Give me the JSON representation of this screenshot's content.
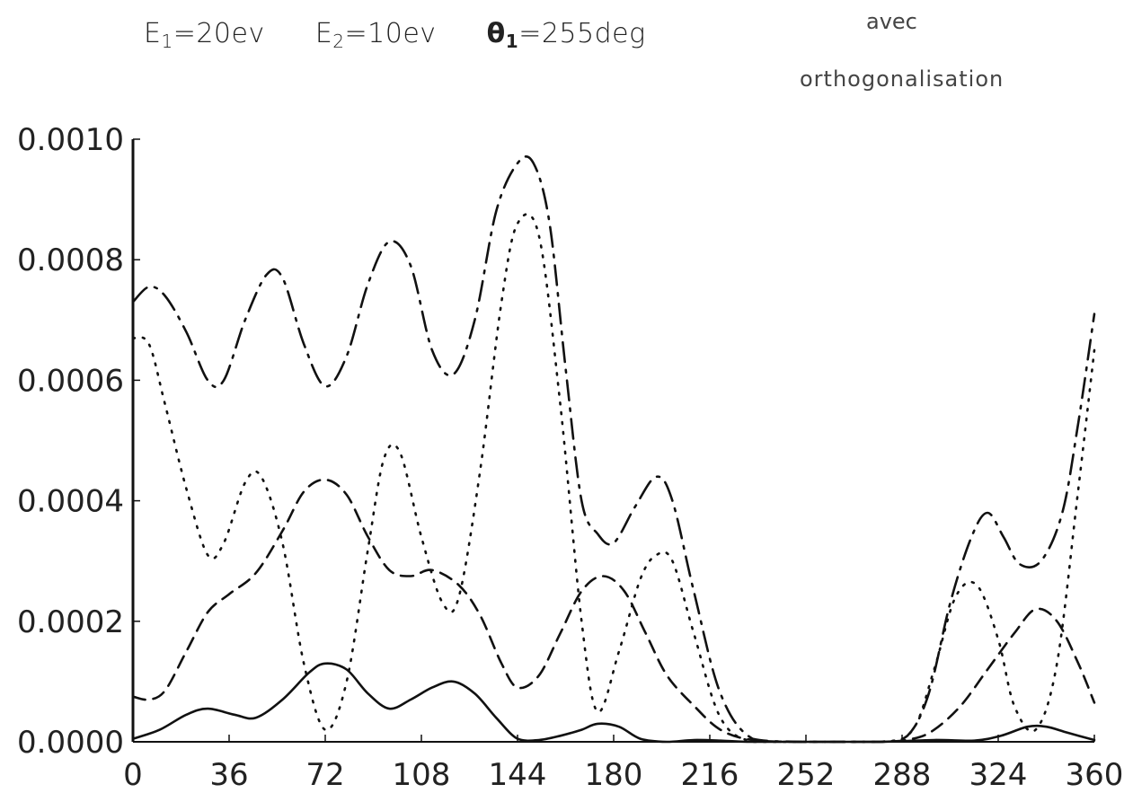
{
  "annotations": {
    "e1_label": "E",
    "e1_sub": "1",
    "e1_value": "=20ev",
    "e2_label": "E",
    "e2_sub": "2",
    "e2_value": "=10ev",
    "theta_label": "θ",
    "theta_sub": "1",
    "theta_value": "=255deg",
    "note_line1": "avec",
    "note_line2": "orthogonalisation"
  },
  "chart_data": {
    "type": "line",
    "title": "",
    "xlabel": "",
    "ylabel": "",
    "xlim": [
      0,
      360
    ],
    "ylim": [
      0,
      0.001
    ],
    "grid": false,
    "legend": "none",
    "x_ticks": [
      "0",
      "36",
      "72",
      "108",
      "144",
      "180",
      "216",
      "252",
      "288",
      "324",
      "360"
    ],
    "y_ticks": [
      "0.0000",
      "0.0002",
      "0.0004",
      "0.0006",
      "0.0008",
      "0.0010"
    ],
    "series": [
      {
        "style": "solid",
        "x": [
          0,
          10,
          20,
          28,
          38,
          46,
          56,
          66,
          72,
          80,
          88,
          96,
          104,
          112,
          120,
          128,
          136,
          144,
          152,
          160,
          168,
          174,
          182,
          190,
          200,
          210,
          220,
          230,
          250,
          280,
          300,
          315,
          325,
          335,
          342,
          350,
          360
        ],
        "y": [
          5e-06,
          2e-05,
          4.5e-05,
          5.5e-05,
          4.5e-05,
          4e-05,
          7e-05,
          0.000115,
          0.00013,
          0.00012,
          8e-05,
          5.5e-05,
          7e-05,
          9e-05,
          0.0001,
          8e-05,
          4e-05,
          5e-06,
          3e-06,
          1e-05,
          2e-05,
          3e-05,
          2.5e-05,
          5e-06,
          0.0,
          3e-06,
          2e-06,
          0.0,
          0.0,
          0.0,
          3e-06,
          2e-06,
          1e-05,
          2.5e-05,
          2.5e-05,
          1.5e-05,
          3e-06
        ]
      },
      {
        "style": "dashed",
        "x": [
          0,
          6,
          12,
          20,
          28,
          36,
          46,
          56,
          64,
          72,
          80,
          88,
          96,
          104,
          112,
          122,
          130,
          138,
          144,
          152,
          160,
          168,
          176,
          184,
          192,
          200,
          210,
          220,
          232,
          250,
          280,
          292,
          300,
          310,
          320,
          330,
          338,
          346,
          354,
          360
        ],
        "y": [
          7.5e-05,
          7e-05,
          8.5e-05,
          0.00015,
          0.000215,
          0.000245,
          0.00028,
          0.00035,
          0.000415,
          0.000435,
          0.00041,
          0.00034,
          0.000285,
          0.000275,
          0.000285,
          0.00026,
          0.00021,
          0.00013,
          9e-05,
          0.00011,
          0.00018,
          0.00025,
          0.000275,
          0.00025,
          0.00018,
          0.00011,
          6e-05,
          2e-05,
          3e-06,
          0.0,
          0.0,
          5e-06,
          2e-05,
          6e-05,
          0.00012,
          0.00018,
          0.00022,
          0.0002,
          0.00013,
          6.5e-05
        ]
      },
      {
        "style": "dotted",
        "x": [
          0,
          6,
          12,
          20,
          28,
          34,
          42,
          48,
          56,
          64,
          72,
          80,
          88,
          94,
          100,
          108,
          116,
          122,
          130,
          138,
          144,
          152,
          160,
          168,
          174,
          182,
          190,
          196,
          202,
          210,
          220,
          232,
          250,
          280,
          292,
          300,
          308,
          316,
          324,
          330,
          338,
          346,
          354,
          360
        ],
        "y": [
          0.00067,
          0.00066,
          0.00056,
          0.00042,
          0.00031,
          0.00033,
          0.00043,
          0.00044,
          0.00033,
          0.00013,
          2e-05,
          0.0001,
          0.00032,
          0.00047,
          0.00048,
          0.00034,
          0.00023,
          0.00024,
          0.00045,
          0.00073,
          0.00086,
          0.00084,
          0.00056,
          0.0002,
          5e-05,
          0.00015,
          0.00027,
          0.00031,
          0.0003,
          0.00018,
          4e-05,
          0.0,
          0.0,
          0.0,
          2e-05,
          0.00012,
          0.00024,
          0.00026,
          0.00017,
          6e-05,
          2e-05,
          0.00013,
          0.00042,
          0.00065
        ]
      },
      {
        "style": "dashdot",
        "x": [
          0,
          6,
          12,
          20,
          28,
          34,
          42,
          50,
          56,
          64,
          72,
          80,
          88,
          96,
          104,
          112,
          120,
          128,
          136,
          144,
          150,
          156,
          162,
          168,
          174,
          180,
          188,
          196,
          202,
          210,
          220,
          232,
          250,
          280,
          290,
          298,
          306,
          314,
          320,
          326,
          332,
          340,
          348,
          354,
          360
        ],
        "y": [
          0.00073,
          0.000755,
          0.00074,
          0.00068,
          0.0006,
          0.0006,
          0.0007,
          0.000775,
          0.00077,
          0.00066,
          0.00059,
          0.00064,
          0.00076,
          0.00083,
          0.00079,
          0.00065,
          0.00061,
          0.0007,
          0.00088,
          0.00096,
          0.00096,
          0.00086,
          0.00062,
          0.0004,
          0.000345,
          0.00033,
          0.00039,
          0.00044,
          0.0004,
          0.00025,
          8e-05,
          5e-06,
          0.0,
          0.0,
          1e-05,
          8e-05,
          0.00023,
          0.00034,
          0.00038,
          0.00034,
          0.000295,
          0.0003,
          0.00038,
          0.00053,
          0.00071
        ]
      }
    ]
  }
}
